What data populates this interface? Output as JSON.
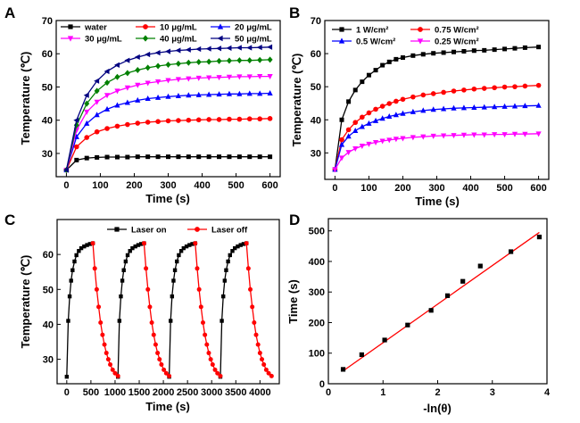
{
  "chart_data": [
    {
      "panel": "A",
      "type": "line",
      "xlabel": "Time (s)",
      "ylabel": "Temperature (℃)",
      "xlim": [
        -30,
        630
      ],
      "ylim": [
        23,
        70
      ],
      "xticks": [
        0,
        100,
        200,
        300,
        400,
        500,
        600
      ],
      "yticks": [
        30,
        40,
        50,
        60,
        70
      ],
      "legend_placement": "top (two columns)",
      "x": [
        0,
        30,
        60,
        90,
        120,
        150,
        180,
        210,
        240,
        270,
        300,
        330,
        360,
        390,
        420,
        450,
        480,
        510,
        540,
        570,
        600
      ],
      "series": [
        {
          "name": "water",
          "color": "#000000",
          "marker": "square",
          "values": [
            25,
            28.0,
            28.6,
            28.8,
            28.9,
            28.9,
            28.9,
            29.0,
            29.0,
            29.0,
            29.0,
            29.0,
            29.0,
            29.0,
            29.0,
            29.0,
            29.0,
            29.0,
            29.0,
            29.0,
            29.0
          ]
        },
        {
          "name": "10 μg/mL",
          "color": "#ff0000",
          "marker": "circle",
          "values": [
            25,
            32.0,
            34.8,
            36.5,
            37.5,
            38.2,
            38.7,
            39.1,
            39.4,
            39.6,
            39.8,
            39.9,
            40.0,
            40.1,
            40.2,
            40.2,
            40.3,
            40.3,
            40.4,
            40.4,
            40.5
          ]
        },
        {
          "name": "20 μg/mL",
          "color": "#0000ff",
          "marker": "triangle-up",
          "values": [
            25,
            35.0,
            39.0,
            41.6,
            43.3,
            44.5,
            45.3,
            46.0,
            46.5,
            46.8,
            47.1,
            47.3,
            47.5,
            47.6,
            47.7,
            47.8,
            47.9,
            47.9,
            48.0,
            48.0,
            48.1
          ]
        },
        {
          "name": "30 μg/mL",
          "color": "#ff00ff",
          "marker": "triangle-down",
          "values": [
            25,
            37.0,
            42.5,
            45.5,
            47.5,
            48.8,
            49.8,
            50.6,
            51.2,
            51.6,
            52.0,
            52.3,
            52.5,
            52.7,
            52.8,
            52.9,
            53.0,
            53.1,
            53.1,
            53.2,
            53.2
          ]
        },
        {
          "name": "40 μg/mL",
          "color": "#008000",
          "marker": "diamond",
          "values": [
            25,
            38.5,
            45.0,
            48.8,
            51.3,
            53.0,
            54.2,
            55.1,
            55.8,
            56.3,
            56.7,
            57.0,
            57.3,
            57.5,
            57.6,
            57.8,
            57.9,
            58.0,
            58.0,
            58.1,
            58.2
          ]
        },
        {
          "name": "50 μg/mL",
          "color": "#000080",
          "marker": "triangle-left",
          "values": [
            25,
            40.0,
            47.5,
            51.8,
            54.7,
            56.6,
            58.0,
            59.0,
            59.8,
            60.3,
            60.7,
            61.0,
            61.2,
            61.4,
            61.5,
            61.6,
            61.7,
            61.8,
            61.8,
            61.9,
            62.0
          ]
        }
      ]
    },
    {
      "panel": "B",
      "type": "line",
      "xlabel": "Time (s)",
      "ylabel": "Temperature (℃)",
      "xlim": [
        -30,
        630
      ],
      "ylim": [
        22,
        70
      ],
      "xticks": [
        0,
        100,
        200,
        300,
        400,
        500,
        600
      ],
      "yticks": [
        30,
        40,
        50,
        60,
        70
      ],
      "legend_placement": "top-left (two columns)",
      "x": [
        0,
        20,
        40,
        60,
        80,
        100,
        120,
        140,
        160,
        180,
        200,
        230,
        260,
        290,
        320,
        350,
        380,
        410,
        440,
        470,
        500,
        530,
        560,
        600
      ],
      "series": [
        {
          "name": "1 W/cm²",
          "color": "#000000",
          "marker": "square",
          "values": [
            25,
            40.0,
            45.5,
            49.0,
            51.5,
            53.5,
            55.0,
            56.5,
            57.5,
            58.3,
            58.8,
            59.4,
            59.8,
            60.1,
            60.3,
            60.5,
            60.7,
            60.9,
            61.0,
            61.2,
            61.4,
            61.6,
            61.8,
            62.0
          ]
        },
        {
          "name": "0.75 W/cm²",
          "color": "#ff0000",
          "marker": "circle",
          "values": [
            25,
            34.0,
            37.0,
            39.2,
            40.8,
            42.1,
            43.2,
            44.1,
            44.9,
            45.6,
            46.2,
            46.9,
            47.5,
            47.9,
            48.3,
            48.7,
            49.0,
            49.3,
            49.5,
            49.7,
            49.9,
            50.0,
            50.2,
            50.4
          ]
        },
        {
          "name": "0.5 W/cm²",
          "color": "#0000ff",
          "marker": "triangle-up",
          "values": [
            25,
            32.5,
            35.0,
            36.7,
            37.9,
            38.9,
            39.7,
            40.4,
            41.0,
            41.5,
            41.9,
            42.4,
            42.8,
            43.1,
            43.3,
            43.5,
            43.6,
            43.7,
            43.8,
            43.9,
            44.0,
            44.1,
            44.2,
            44.3
          ]
        },
        {
          "name": "0.25 W/cm²",
          "color": "#ff00ff",
          "marker": "triangle-down",
          "values": [
            25,
            28.5,
            30.2,
            31.3,
            32.1,
            32.7,
            33.2,
            33.6,
            33.9,
            34.2,
            34.4,
            34.7,
            34.9,
            35.1,
            35.2,
            35.3,
            35.4,
            35.5,
            35.5,
            35.6,
            35.6,
            35.7,
            35.7,
            35.8
          ]
        }
      ]
    },
    {
      "panel": "C",
      "type": "line",
      "xlabel": "Time (s)",
      "ylabel": "Temperature (℃)",
      "xlim": [
        -200,
        4400
      ],
      "ylim": [
        23,
        70
      ],
      "xticks": [
        0,
        500,
        1000,
        1500,
        2000,
        2500,
        3000,
        3500,
        4000
      ],
      "yticks": [
        30,
        40,
        50,
        60
      ],
      "legend_placement": "top",
      "series": [
        {
          "name": "Laser on",
          "color": "#000000",
          "marker": "square",
          "cycles": [
            {
              "x": [
                0,
                30,
                60,
                90,
                120,
                160,
                200,
                250,
                300,
                360,
                420,
                480,
                540
              ],
              "y": [
                25,
                41,
                48,
                52.5,
                55.5,
                58,
                59.8,
                61,
                61.8,
                62.3,
                62.7,
                63,
                63.2
              ]
            },
            {
              "x": [
                1060,
                1090,
                1120,
                1150,
                1180,
                1220,
                1260,
                1310,
                1360,
                1420,
                1480,
                1540,
                1600
              ],
              "y": [
                25,
                41,
                48,
                52.5,
                55.5,
                58,
                59.8,
                61,
                61.8,
                62.3,
                62.7,
                63,
                63.2
              ]
            },
            {
              "x": [
                2120,
                2150,
                2180,
                2210,
                2240,
                2280,
                2320,
                2370,
                2420,
                2480,
                2540,
                2600,
                2660
              ],
              "y": [
                25,
                41,
                48,
                52.5,
                55.5,
                58,
                59.8,
                61,
                61.8,
                62.3,
                62.7,
                63,
                63.2
              ]
            },
            {
              "x": [
                3180,
                3210,
                3240,
                3270,
                3300,
                3340,
                3380,
                3430,
                3480,
                3540,
                3600,
                3660,
                3720
              ],
              "y": [
                25,
                41,
                48,
                52.5,
                55.5,
                58,
                59.8,
                61,
                61.8,
                62.3,
                62.7,
                63,
                63.2
              ]
            }
          ]
        },
        {
          "name": "Laser off",
          "color": "#ff0000",
          "marker": "circle",
          "cycles": [
            {
              "x": [
                540,
                580,
                620,
                660,
                700,
                740,
                780,
                820,
                860,
                900,
                950,
                1000,
                1060
              ],
              "y": [
                63.2,
                56,
                50,
                45,
                40.5,
                37,
                34.2,
                31.8,
                30,
                28.5,
                27,
                26,
                25.2
              ]
            },
            {
              "x": [
                1600,
                1640,
                1680,
                1720,
                1760,
                1800,
                1840,
                1880,
                1920,
                1960,
                2010,
                2060,
                2120
              ],
              "y": [
                63.2,
                56,
                50,
                45,
                40.5,
                37,
                34.2,
                31.8,
                30,
                28.5,
                27,
                26,
                25.2
              ]
            },
            {
              "x": [
                2660,
                2700,
                2740,
                2780,
                2820,
                2860,
                2900,
                2940,
                2980,
                3020,
                3070,
                3120,
                3180
              ],
              "y": [
                63.2,
                56,
                50,
                45,
                40.5,
                37,
                34.2,
                31.8,
                30,
                28.5,
                27,
                26,
                25.2
              ]
            },
            {
              "x": [
                3720,
                3760,
                3800,
                3840,
                3880,
                3920,
                3960,
                4000,
                4040,
                4080,
                4130,
                4180,
                4240
              ],
              "y": [
                63.2,
                56,
                50,
                45,
                40.5,
                37,
                34.2,
                31.8,
                30,
                28.5,
                27,
                26,
                25.2
              ]
            }
          ]
        }
      ]
    },
    {
      "panel": "D",
      "type": "scatter",
      "xlabel": "-ln(θ)",
      "ylabel": "Time (s)",
      "xlim": [
        0,
        4
      ],
      "ylim": [
        0,
        540
      ],
      "xticks": [
        0,
        1,
        2,
        3,
        4
      ],
      "yticks": [
        0,
        100,
        200,
        300,
        400,
        500
      ],
      "series": [
        {
          "name": "",
          "color": "#000000",
          "marker": "square",
          "x": [
            0.27,
            0.61,
            1.03,
            1.45,
            1.88,
            2.18,
            2.46,
            2.78,
            3.34,
            3.86
          ],
          "y": [
            47,
            95,
            143,
            192,
            240,
            288,
            335,
            385,
            432,
            480
          ]
        }
      ],
      "fit_line": {
        "color": "#ff0000",
        "x": [
          0.27,
          3.86
        ],
        "y": [
          42,
          495
        ]
      }
    }
  ],
  "panels": {
    "A": {
      "letter": "A",
      "xlabel": "Time (s)",
      "ylabel": "Temperature (℃)"
    },
    "B": {
      "letter": "B",
      "xlabel": "Time (s)",
      "ylabel": "Temperature (℃)"
    },
    "C": {
      "letter": "C",
      "xlabel": "Time (s)",
      "ylabel": "Temperature (℃)"
    },
    "D": {
      "letter": "D",
      "xlabel": "-ln(θ)",
      "ylabel": "Time (s)"
    }
  },
  "legends": {
    "A": [
      "water",
      "10 μg/mL",
      "20 μg/mL",
      "30 μg/mL",
      "40 μg/mL",
      "50 μg/mL"
    ],
    "B": [
      "1 W/cm²",
      "0.75 W/cm²",
      "0.5 W/cm²",
      "0.25 W/cm²"
    ],
    "C": [
      "Laser on",
      "Laser off"
    ]
  }
}
